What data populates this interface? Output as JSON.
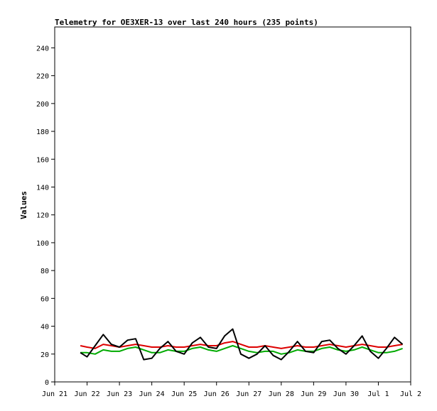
{
  "chart_data": {
    "type": "line",
    "title": "Telemetry for OE3XER-13 over last 240 hours (235 points)",
    "xlabel": "",
    "ylabel": "Values",
    "ylim": [
      0,
      255
    ],
    "yticks": [
      0,
      20,
      40,
      60,
      80,
      100,
      120,
      140,
      160,
      180,
      200,
      220,
      240
    ],
    "xlim": [
      "Jun 21",
      "Jul 2"
    ],
    "xticks": [
      "Jun 21",
      "Jun 22",
      "Jun 23",
      "Jun 24",
      "Jun 25",
      "Jun 26",
      "Jun 27",
      "Jun 28",
      "Jun 29",
      "Jun 30",
      "Jul 1",
      "Jul 2"
    ],
    "grid": false,
    "x": [
      "Jun 21 19:00",
      "Jun 22 00:00",
      "Jun 22 06:00",
      "Jun 22 12:00",
      "Jun 22 18:00",
      "Jun 23 00:00",
      "Jun 23 06:00",
      "Jun 23 12:00",
      "Jun 23 18:00",
      "Jun 24 00:00",
      "Jun 24 06:00",
      "Jun 24 12:00",
      "Jun 24 18:00",
      "Jun 25 00:00",
      "Jun 25 06:00",
      "Jun 25 12:00",
      "Jun 25 18:00",
      "Jun 26 00:00",
      "Jun 26 06:00",
      "Jun 26 12:00",
      "Jun 26 18:00",
      "Jun 27 00:00",
      "Jun 27 06:00",
      "Jun 27 12:00",
      "Jun 27 18:00",
      "Jun 28 00:00",
      "Jun 28 06:00",
      "Jun 28 12:00",
      "Jun 28 18:00",
      "Jun 29 00:00",
      "Jun 29 06:00",
      "Jun 29 12:00",
      "Jun 29 18:00",
      "Jun 30 00:00",
      "Jun 30 06:00",
      "Jun 30 12:00",
      "Jun 30 18:00",
      "Jul 1 00:00",
      "Jul 1 06:00",
      "Jul 1 12:00",
      "Jul 1 18:00"
    ],
    "series": [
      {
        "color": "#dd0000",
        "values": [
          26,
          25,
          24,
          27,
          26,
          25,
          26,
          27,
          26,
          25,
          25,
          26,
          25,
          25,
          26,
          27,
          26,
          26,
          28,
          29,
          27,
          25,
          25,
          26,
          25,
          24,
          25,
          26,
          25,
          25,
          26,
          27,
          26,
          25,
          26,
          27,
          26,
          25,
          25,
          26,
          27
        ]
      },
      {
        "color": "#00aa00",
        "values": [
          21,
          21,
          20,
          23,
          22,
          22,
          24,
          25,
          23,
          21,
          21,
          23,
          22,
          22,
          24,
          25,
          23,
          22,
          24,
          26,
          24,
          22,
          21,
          22,
          22,
          20,
          21,
          23,
          22,
          22,
          24,
          25,
          23,
          22,
          23,
          25,
          23,
          21,
          21,
          22,
          24
        ]
      },
      {
        "color": "#000000",
        "values": [
          21,
          18,
          26,
          34,
          27,
          25,
          30,
          31,
          16,
          17,
          24,
          29,
          22,
          20,
          28,
          32,
          25,
          24,
          33,
          38,
          20,
          17,
          20,
          26,
          19,
          16,
          22,
          29,
          22,
          21,
          29,
          30,
          24,
          20,
          26,
          33,
          22,
          17,
          24,
          32,
          27
        ]
      }
    ]
  }
}
